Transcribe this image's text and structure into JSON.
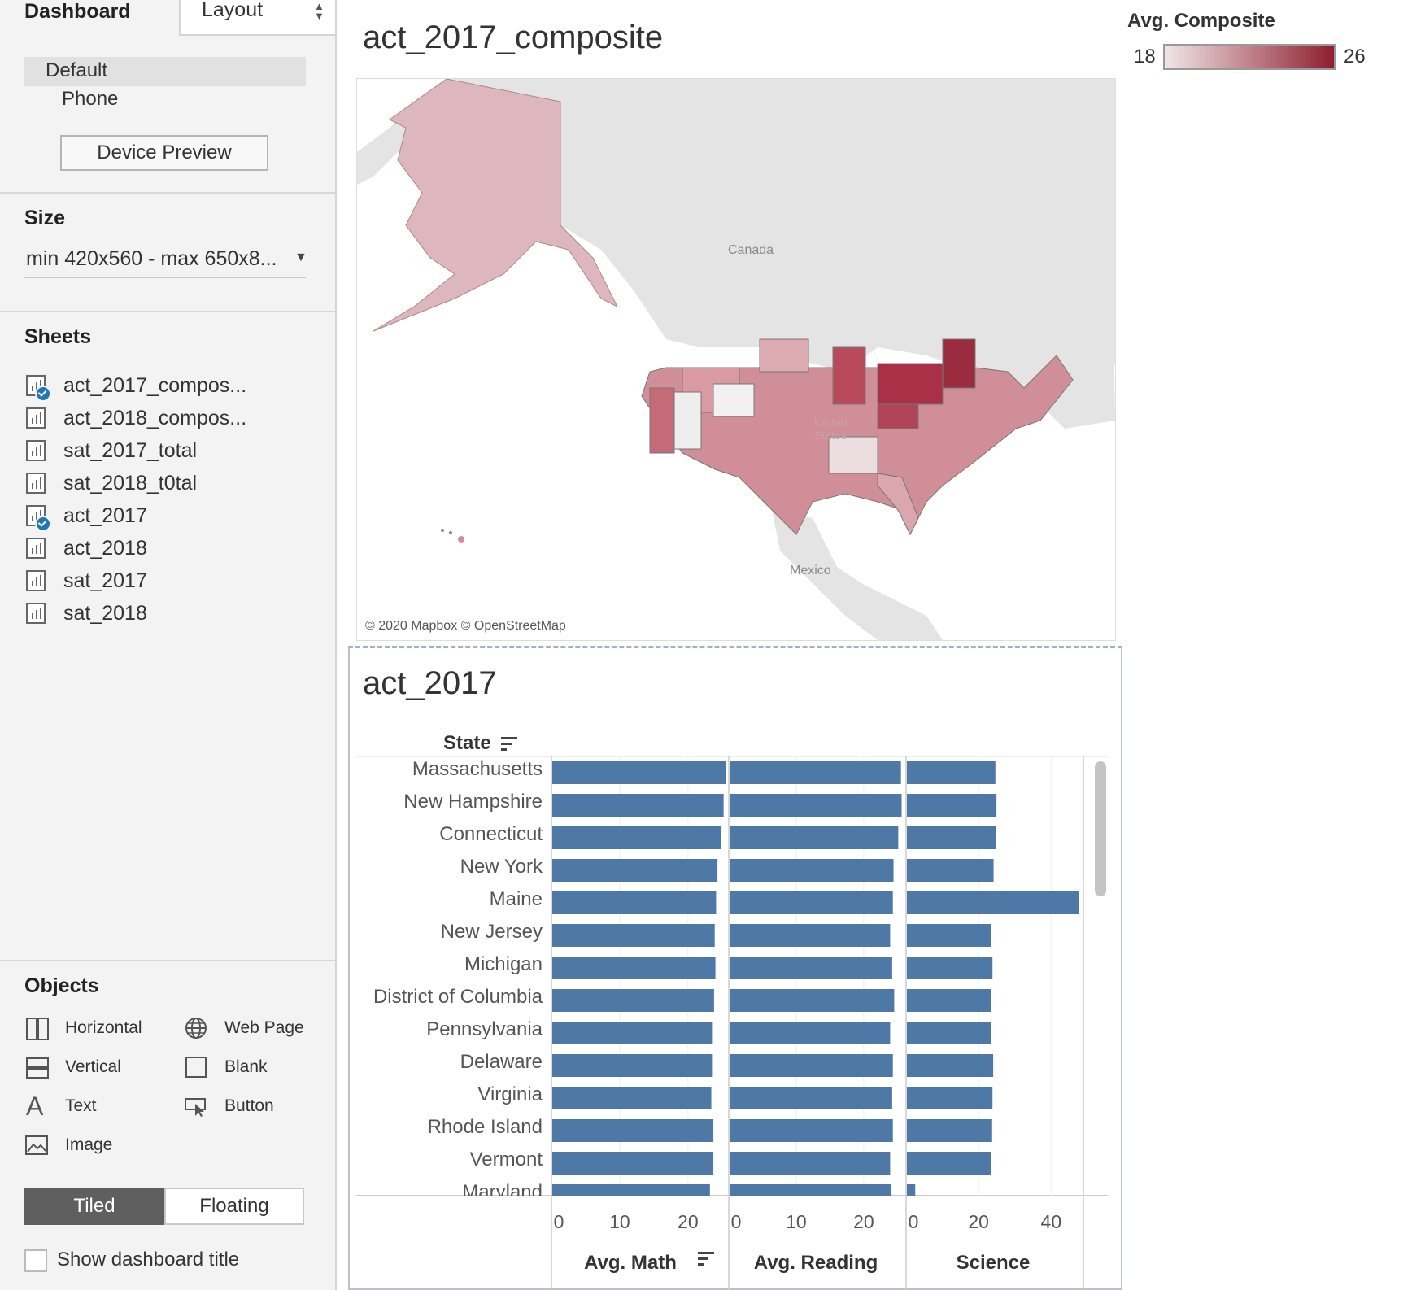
{
  "left_panel": {
    "tabs": {
      "dashboard": "Dashboard",
      "layout": "Layout"
    },
    "device": {
      "items": [
        "Default",
        "Phone"
      ],
      "preview_button": "Device Preview"
    },
    "size": {
      "title": "Size",
      "value": "min 420x560 - max 650x8..."
    },
    "sheets": {
      "title": "Sheets",
      "items": [
        {
          "label": "act_2017_compos...",
          "used": true
        },
        {
          "label": "act_2018_compos...",
          "used": false
        },
        {
          "label": "sat_2017_total",
          "used": false
        },
        {
          "label": "sat_2018_t0tal",
          "used": false
        },
        {
          "label": "act_2017",
          "used": true
        },
        {
          "label": "act_2018",
          "used": false
        },
        {
          "label": "sat_2017",
          "used": false
        },
        {
          "label": "sat_2018",
          "used": false
        }
      ]
    },
    "objects": {
      "title": "Objects",
      "items": [
        "Horizontal",
        "Web Page",
        "Vertical",
        "Blank",
        "Text",
        "Button",
        "Image"
      ]
    },
    "mode": {
      "tiled": "Tiled",
      "floating": "Floating",
      "selected": "Tiled"
    },
    "show_title": {
      "label": "Show dashboard title",
      "checked": false
    }
  },
  "map": {
    "title": "act_2017_composite",
    "labels": {
      "canada": "Canada",
      "us": "United States",
      "mexico": "Mexico"
    },
    "attribution": "© 2020 Mapbox © OpenStreetMap"
  },
  "legend": {
    "title": "Avg. Composite",
    "min": "18",
    "max": "26",
    "color_low": "#f1e6e7",
    "color_high": "#8e1f2f"
  },
  "chart_data": {
    "type": "bar",
    "title": "act_2017",
    "row_header": "State",
    "categories": [
      "Massachusetts",
      "New Hampshire",
      "Connecticut",
      "New York",
      "Maine",
      "New Jersey",
      "Michigan",
      "District of Columbia",
      "Pennsylvania",
      "Delaware",
      "Virginia",
      "Rhode Island",
      "Vermont",
      "Maryland"
    ],
    "series": [
      {
        "name": "Avg. Math",
        "values": [
          25.4,
          25.1,
          24.7,
          24.2,
          24.0,
          23.8,
          23.9,
          23.7,
          23.4,
          23.4,
          23.3,
          23.6,
          23.6,
          23.1
        ],
        "xlim": [
          0,
          25.5
        ],
        "ticks": [
          0,
          10,
          20
        ]
      },
      {
        "name": "Avg. Reading",
        "values": [
          25.4,
          25.5,
          25.0,
          24.3,
          24.2,
          23.8,
          24.1,
          24.4,
          23.8,
          24.2,
          24.1,
          24.2,
          23.8,
          24.0
        ],
        "xlim": [
          0,
          25.8
        ],
        "ticks": [
          0,
          10,
          20
        ]
      },
      {
        "name": "Science",
        "values": [
          24.4,
          24.7,
          24.5,
          23.9,
          47.5,
          23.2,
          23.6,
          23.3,
          23.3,
          23.8,
          23.6,
          23.5,
          23.3,
          2.3
        ],
        "xlim": [
          0,
          48
        ],
        "ticks": [
          0,
          20,
          40
        ]
      }
    ],
    "bar_color": "#4e79a7",
    "sort_icon_on": [
      "State",
      "Avg. Math"
    ]
  }
}
